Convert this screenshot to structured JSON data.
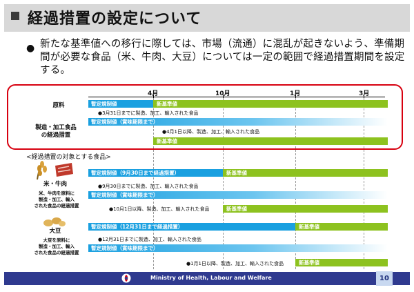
{
  "title": "経過措置の設定について",
  "intro": {
    "bullet": "●",
    "text": "新たな基準値への移行に際しては、市場（流通）に混乱が起きないよう、準備期間が必要な食品（米、牛肉、大豆）については一定の範囲で経過措置期間を設定する。"
  },
  "timeline": {
    "months": [
      "4月",
      "10月",
      "1月",
      "3月"
    ]
  },
  "main_block": {
    "raw_label": "原料",
    "processed_label": "製造・加工食品\nの経過措置",
    "raw_provisional": "暫定規制値",
    "raw_new": "新基準値",
    "note1": "●3月31日までに製造、加工、輸入された食品",
    "processed_provisional": "暫定規制値（賞味期限まで）",
    "note2": "●4月1日以降、製造、加工、輸入された食品",
    "processed_new": "新基準値"
  },
  "target_header": "<経過措置の対象とする食品>",
  "rice_beef": {
    "name": "米・牛肉",
    "desc": "米、牛肉を原料に\n製造・加工、輸入\nされた食品の経過措置",
    "raw_provisional": "暫定規制値（9月30日まで経過措置）",
    "raw_new": "新基準値",
    "note1": "●9月30日までに製造、加工、輸入された食品",
    "processed_provisional": "暫定規制値（賞味期限まで）",
    "note2": "●10月1日以降、製造、加工、輸入された食品",
    "processed_new": "新基準値"
  },
  "soybean": {
    "name": "大豆",
    "desc": "大豆を原料に\n製造・加工、輸入\nされた食品の経過措置",
    "raw_provisional": "暫定規制値（12月31日まで経過措置）",
    "raw_new": "新基準値",
    "note1": "●12月31日までに製造、加工、輸入された食品",
    "processed_provisional": "暫定規制値（賞味期限まで）",
    "note2": "●1月1日以降、製造、加工、輸入された食品",
    "processed_new": "新基準値"
  },
  "footer": {
    "ministry": "Ministry of Health, Labour and Welfare",
    "page": "10"
  },
  "colors": {
    "provisional_blue": "#1aa0e0",
    "new_green": "#8dc21f",
    "highlight_red": "#d7000f",
    "footer_navy": "#2f3a8f"
  }
}
